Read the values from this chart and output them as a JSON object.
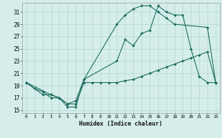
{
  "xlabel": "Humidex (Indice chaleur)",
  "bg_color": "#d5eeeb",
  "grid_color": "#b8d8d4",
  "line_color": "#1a6b5a",
  "xlim": [
    -0.5,
    23.5
  ],
  "ylim": [
    14.5,
    32.5
  ],
  "xticks": [
    0,
    1,
    2,
    3,
    4,
    5,
    6,
    7,
    8,
    9,
    10,
    11,
    12,
    13,
    14,
    15,
    16,
    17,
    18,
    19,
    20,
    21,
    22,
    23
  ],
  "yticks": [
    15,
    17,
    19,
    21,
    23,
    25,
    27,
    29,
    31
  ],
  "line1_x": [
    0,
    1,
    2,
    3,
    4,
    5,
    6,
    7,
    11,
    12,
    13,
    14,
    15,
    16,
    17,
    18,
    22,
    23
  ],
  "line1_y": [
    19.5,
    18.5,
    18.0,
    17.0,
    17.0,
    15.5,
    15.5,
    20.0,
    29.0,
    30.5,
    31.5,
    32.0,
    32.0,
    31.0,
    30.0,
    29.0,
    28.5,
    19.5
  ],
  "line2_x": [
    0,
    3,
    4,
    5,
    6,
    7,
    11,
    12,
    13,
    14,
    15,
    16,
    17,
    18,
    19,
    20,
    21,
    22,
    23
  ],
  "line2_y": [
    19.5,
    17.5,
    17.0,
    16.0,
    16.5,
    20.0,
    23.0,
    26.5,
    25.5,
    27.5,
    28.0,
    32.0,
    31.0,
    30.5,
    30.5,
    25.0,
    20.5,
    19.5,
    19.5
  ],
  "line3_x": [
    0,
    2,
    3,
    4,
    5,
    6,
    7,
    8,
    9,
    10,
    11,
    12,
    13,
    14,
    15,
    16,
    17,
    18,
    19,
    20,
    21,
    22,
    23
  ],
  "line3_y": [
    19.5,
    17.5,
    17.5,
    17.0,
    16.0,
    16.0,
    19.5,
    19.5,
    19.5,
    19.5,
    19.5,
    19.8,
    20.0,
    20.5,
    21.0,
    21.5,
    22.0,
    22.5,
    23.0,
    23.5,
    24.0,
    24.5,
    19.5
  ]
}
